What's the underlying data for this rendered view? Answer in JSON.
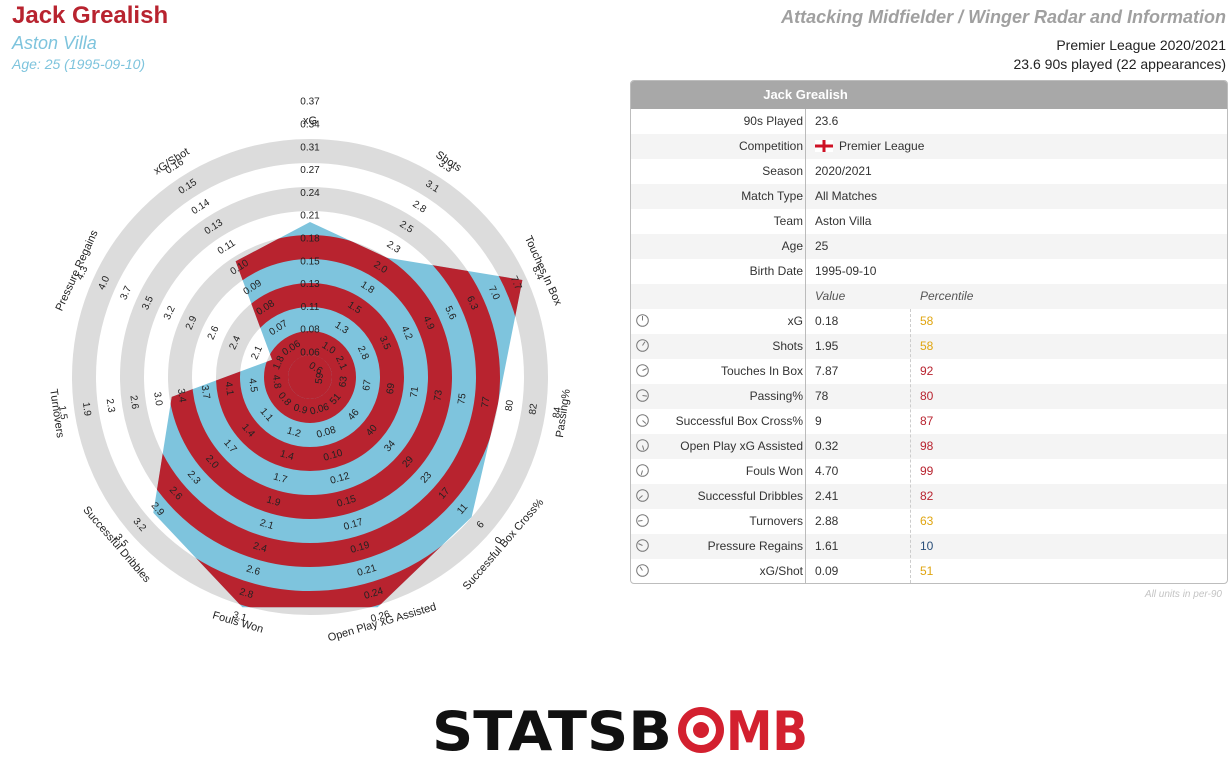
{
  "header": {
    "player": "Jack Grealish",
    "team": "Aston Villa",
    "age": "Age: 25 (1995-09-10)",
    "template": "Attacking Midfielder / Winger Radar and Information",
    "league_season": "Premier League 2020/2021",
    "played": "23.6 90s played (22 appearances)"
  },
  "table": {
    "title": "Jack Grealish",
    "info": [
      {
        "label": "90s Played",
        "value": "23.6"
      },
      {
        "label": "Competition",
        "value": "Premier League"
      },
      {
        "label": "Season",
        "value": "2020/2021"
      },
      {
        "label": "Match Type",
        "value": "All Matches"
      },
      {
        "label": "Team",
        "value": "Aston Villa"
      },
      {
        "label": "Age",
        "value": "25"
      },
      {
        "label": "Birth Date",
        "value": "1995-09-10"
      }
    ],
    "value_header": "Value",
    "percentile_header": "Percentile",
    "stats": [
      {
        "label": "xG",
        "value": "0.18",
        "pct": "58",
        "color": "#e0a510"
      },
      {
        "label": "Shots",
        "value": "1.95",
        "pct": "58",
        "color": "#e0a510"
      },
      {
        "label": "Touches In Box",
        "value": "7.87",
        "pct": "92",
        "color": "#b8232f"
      },
      {
        "label": "Passing%",
        "value": "78",
        "pct": "80",
        "color": "#b8232f"
      },
      {
        "label": "Successful Box Cross%",
        "value": "9",
        "pct": "87",
        "color": "#b8232f"
      },
      {
        "label": "Open Play xG Assisted",
        "value": "0.32",
        "pct": "98",
        "color": "#b8232f"
      },
      {
        "label": "Fouls Won",
        "value": "4.70",
        "pct": "99",
        "color": "#b8232f"
      },
      {
        "label": "Successful Dribbles",
        "value": "2.41",
        "pct": "82",
        "color": "#b8232f"
      },
      {
        "label": "Turnovers",
        "value": "2.88",
        "pct": "63",
        "color": "#e0a510"
      },
      {
        "label": "Pressure Regains",
        "value": "1.61",
        "pct": "10",
        "color": "#2a4f7a"
      },
      {
        "label": "xG/Shot",
        "value": "0.09",
        "pct": "51",
        "color": "#e0a510"
      }
    ],
    "footnote": "All units in per-90"
  },
  "logo": {
    "text_1": "STATSB",
    "text_2": "MB"
  },
  "colors": {
    "red": "#b8232f",
    "blue": "#7ec4dd",
    "ring_grey": "#dcdcdc"
  },
  "chart_data": {
    "type": "radar",
    "title": "Attacking Midfielder / Winger Radar and Information",
    "series": [
      {
        "name": "Jack Grealish"
      }
    ],
    "axes": [
      {
        "name": "xG",
        "value": 0.18,
        "ticks": [
          "0.06",
          "0.08",
          "0.11",
          "0.13",
          "0.15",
          "0.18",
          "0.21",
          "0.24",
          "0.27",
          "0.31",
          "0.34",
          "0.37"
        ]
      },
      {
        "name": "Shots",
        "value": 1.95,
        "ticks": [
          "0.6",
          "1.0",
          "1.3",
          "1.5",
          "1.8",
          "2.0",
          "2.3",
          "2.5",
          "2.8",
          "3.1",
          "3.3"
        ]
      },
      {
        "name": "Touches In Box",
        "value": 7.87,
        "ticks": [
          "2.1",
          "2.8",
          "3.5",
          "4.2",
          "4.9",
          "5.6",
          "6.3",
          "7.0",
          "7.7",
          "8.4"
        ]
      },
      {
        "name": "Passing%",
        "value": 78,
        "ticks": [
          "59",
          "63",
          "67",
          "69",
          "71",
          "73",
          "75",
          "77",
          "80",
          "82",
          "84"
        ]
      },
      {
        "name": "Successful Box Cross%",
        "value": 9,
        "ticks": [
          "51",
          "46",
          "40",
          "34",
          "29",
          "23",
          "17",
          "11",
          "6",
          "0"
        ]
      },
      {
        "name": "Open Play xG Assisted",
        "value": 0.32,
        "ticks": [
          "0.06",
          "0.08",
          "0.10",
          "0.12",
          "0.15",
          "0.17",
          "0.19",
          "0.21",
          "0.24",
          "0.26"
        ]
      },
      {
        "name": "Fouls Won",
        "value": 4.7,
        "ticks": [
          "0.9",
          "1.2",
          "1.4",
          "1.7",
          "1.9",
          "2.1",
          "2.4",
          "2.6",
          "2.8",
          "3.1"
        ]
      },
      {
        "name": "Successful Dribbles",
        "value": 2.41,
        "ticks": [
          "0.8",
          "1.1",
          "1.4",
          "1.7",
          "2.0",
          "2.3",
          "2.6",
          "2.9",
          "3.2",
          "3.5"
        ]
      },
      {
        "name": "Turnovers",
        "value": 2.88,
        "ticks": [
          "4.8",
          "4.5",
          "4.1",
          "3.7",
          "3.4",
          "3.0",
          "2.6",
          "2.3",
          "1.9",
          "1.5"
        ]
      },
      {
        "name": "Pressure Regains",
        "value": 1.61,
        "ticks": [
          "1.8",
          "2.1",
          "2.4",
          "2.6",
          "2.9",
          "3.2",
          "3.5",
          "3.7",
          "4.0",
          "4.3"
        ]
      },
      {
        "name": "xG/Shot",
        "value": 0.09,
        "ticks": [
          "0.06",
          "0.07",
          "0.08",
          "0.09",
          "0.10",
          "0.11",
          "0.13",
          "0.14",
          "0.15",
          "0.16"
        ]
      }
    ],
    "fill_levels": [
      0.61,
      0.55,
      0.97,
      0.77,
      0.88,
      1.0,
      1.0,
      0.85,
      0.54,
      0.09,
      0.53
    ]
  }
}
